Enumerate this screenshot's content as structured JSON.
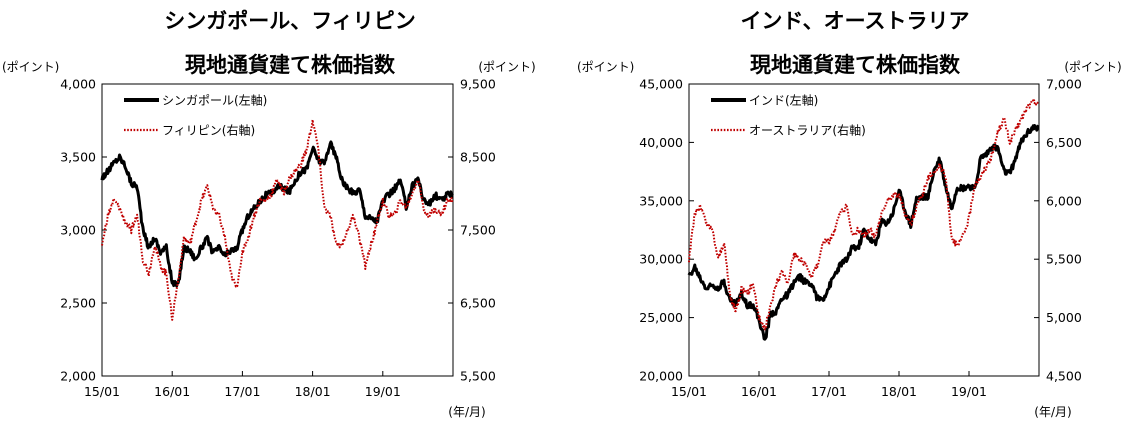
{
  "chart_data": [
    {
      "type": "line",
      "title_line1": "シンガポール、フィリピン",
      "title_line2": "現地通貨建て株価指数",
      "ylabel_left": "(ポイント)",
      "ylabel_right": "(ポイント)",
      "xlabel": "(年/月)",
      "x_ticks": [
        "15/01",
        "16/01",
        "17/01",
        "18/01",
        "19/01"
      ],
      "x_range": [
        "2015-01",
        "2019-12"
      ],
      "y_left_ticks": [
        "2,000",
        "2,500",
        "3,000",
        "3,500",
        "4,000"
      ],
      "y_left_range": [
        2000,
        4000
      ],
      "y_right_ticks": [
        "5,500",
        "6,500",
        "7,500",
        "8,500",
        "9,500"
      ],
      "y_right_range": [
        5500,
        9500
      ],
      "legend_position": "top-left",
      "grid": false,
      "series": [
        {
          "name": "シンガポール(左軸)",
          "axis": "left",
          "color": "#000000",
          "style": "solid",
          "x": [
            "2015-01",
            "2015-02",
            "2015-03",
            "2015-04",
            "2015-05",
            "2015-06",
            "2015-07",
            "2015-08",
            "2015-09",
            "2015-10",
            "2015-11",
            "2015-12",
            "2016-01",
            "2016-02",
            "2016-03",
            "2016-04",
            "2016-05",
            "2016-06",
            "2016-07",
            "2016-08",
            "2016-09",
            "2016-10",
            "2016-11",
            "2016-12",
            "2017-01",
            "2017-02",
            "2017-03",
            "2017-04",
            "2017-05",
            "2017-06",
            "2017-07",
            "2017-08",
            "2017-09",
            "2017-10",
            "2017-11",
            "2017-12",
            "2018-01",
            "2018-02",
            "2018-03",
            "2018-04",
            "2018-05",
            "2018-06",
            "2018-07",
            "2018-08",
            "2018-09",
            "2018-10",
            "2018-11",
            "2018-12",
            "2019-01",
            "2019-02",
            "2019-03",
            "2019-04",
            "2019-05",
            "2019-06",
            "2019-07",
            "2019-08",
            "2019-09",
            "2019-10",
            "2019-11",
            "2019-12"
          ],
          "values": [
            3360,
            3400,
            3460,
            3500,
            3440,
            3320,
            3300,
            3000,
            2880,
            2950,
            2850,
            2880,
            2640,
            2620,
            2880,
            2860,
            2800,
            2880,
            2940,
            2840,
            2880,
            2820,
            2860,
            2870,
            3000,
            3100,
            3150,
            3200,
            3240,
            3250,
            3300,
            3290,
            3260,
            3340,
            3400,
            3420,
            3560,
            3480,
            3450,
            3600,
            3500,
            3340,
            3280,
            3250,
            3280,
            3100,
            3080,
            3060,
            3200,
            3240,
            3280,
            3340,
            3160,
            3300,
            3360,
            3200,
            3180,
            3240,
            3200,
            3240
          ]
        },
        {
          "name": "フィリピン(右軸)",
          "axis": "right",
          "color": "#c00000",
          "style": "dotted",
          "x": [
            "2015-01",
            "2015-02",
            "2015-03",
            "2015-04",
            "2015-05",
            "2015-06",
            "2015-07",
            "2015-08",
            "2015-09",
            "2015-10",
            "2015-11",
            "2015-12",
            "2016-01",
            "2016-02",
            "2016-03",
            "2016-04",
            "2016-05",
            "2016-06",
            "2016-07",
            "2016-08",
            "2016-09",
            "2016-10",
            "2016-11",
            "2016-12",
            "2017-01",
            "2017-02",
            "2017-03",
            "2017-04",
            "2017-05",
            "2017-06",
            "2017-07",
            "2017-08",
            "2017-09",
            "2017-10",
            "2017-11",
            "2017-12",
            "2018-01",
            "2018-02",
            "2018-03",
            "2018-04",
            "2018-05",
            "2018-06",
            "2018-07",
            "2018-08",
            "2018-09",
            "2018-10",
            "2018-11",
            "2018-12",
            "2019-01",
            "2019-02",
            "2019-03",
            "2019-04",
            "2019-05",
            "2019-06",
            "2019-07",
            "2019-08",
            "2019-09",
            "2019-10",
            "2019-11",
            "2019-12"
          ],
          "values": [
            7300,
            7700,
            7900,
            7800,
            7600,
            7500,
            7700,
            7100,
            6900,
            7300,
            7000,
            6900,
            6300,
            6800,
            7400,
            7300,
            7600,
            7900,
            8100,
            7800,
            7700,
            7400,
            6900,
            6700,
            7200,
            7400,
            7700,
            7900,
            7900,
            8000,
            8200,
            8000,
            8200,
            8300,
            8400,
            8600,
            9000,
            8600,
            7800,
            7700,
            7300,
            7300,
            7500,
            7700,
            7400,
            7000,
            7300,
            7600,
            7900,
            7700,
            7700,
            7900,
            7800,
            8000,
            8200,
            7800,
            7700,
            7800,
            7700,
            7900
          ]
        }
      ]
    },
    {
      "type": "line",
      "title_line1": "インド、オーストラリア",
      "title_line2": "現地通貨建て株価指数",
      "ylabel_left": "(ポイント)",
      "ylabel_right": "(ポイント)",
      "xlabel": "(年/月)",
      "x_ticks": [
        "15/01",
        "16/01",
        "17/01",
        "18/01",
        "19/01"
      ],
      "x_range": [
        "2015-01",
        "2019-12"
      ],
      "y_left_ticks": [
        "20,000",
        "25,000",
        "30,000",
        "35,000",
        "40,000",
        "45,000"
      ],
      "y_left_range": [
        20000,
        45000
      ],
      "y_right_ticks": [
        "4,500",
        "5,000",
        "5,500",
        "6,000",
        "6,500",
        "7,000"
      ],
      "y_right_range": [
        4500,
        7000
      ],
      "legend_position": "top-left",
      "grid": false,
      "series": [
        {
          "name": "インド(左軸)",
          "axis": "left",
          "color": "#000000",
          "style": "solid",
          "x": [
            "2015-01",
            "2015-02",
            "2015-03",
            "2015-04",
            "2015-05",
            "2015-06",
            "2015-07",
            "2015-08",
            "2015-09",
            "2015-10",
            "2015-11",
            "2015-12",
            "2016-01",
            "2016-02",
            "2016-03",
            "2016-04",
            "2016-05",
            "2016-06",
            "2016-07",
            "2016-08",
            "2016-09",
            "2016-10",
            "2016-11",
            "2016-12",
            "2017-01",
            "2017-02",
            "2017-03",
            "2017-04",
            "2017-05",
            "2017-06",
            "2017-07",
            "2017-08",
            "2017-09",
            "2017-10",
            "2017-11",
            "2017-12",
            "2018-01",
            "2018-02",
            "2018-03",
            "2018-04",
            "2018-05",
            "2018-06",
            "2018-07",
            "2018-08",
            "2018-09",
            "2018-10",
            "2018-11",
            "2018-12",
            "2019-01",
            "2019-02",
            "2019-03",
            "2019-04",
            "2019-05",
            "2019-06",
            "2019-07",
            "2019-08",
            "2019-09",
            "2019-10",
            "2019-11",
            "2019-12"
          ],
          "values": [
            28500,
            29300,
            28300,
            27500,
            27800,
            27600,
            28100,
            26500,
            26200,
            27000,
            26100,
            26100,
            24800,
            23000,
            25300,
            25600,
            26700,
            27000,
            28000,
            28500,
            28000,
            28000,
            26600,
            26600,
            27600,
            28700,
            29600,
            29900,
            31100,
            30900,
            32500,
            31700,
            31300,
            33200,
            33100,
            34000,
            35900,
            34200,
            32900,
            35200,
            35300,
            35400,
            37600,
            38600,
            36200,
            34400,
            36200,
            36100,
            36300,
            35900,
            38700,
            39000,
            39700,
            39400,
            37500,
            37300,
            38700,
            40100,
            40800,
            41300
          ]
        },
        {
          "name": "オーストラリア(右軸)",
          "axis": "right",
          "color": "#c00000",
          "style": "dotted",
          "x": [
            "2015-01",
            "2015-02",
            "2015-03",
            "2015-04",
            "2015-05",
            "2015-06",
            "2015-07",
            "2015-08",
            "2015-09",
            "2015-10",
            "2015-11",
            "2015-12",
            "2016-01",
            "2016-02",
            "2016-03",
            "2016-04",
            "2016-05",
            "2016-06",
            "2016-07",
            "2016-08",
            "2016-09",
            "2016-10",
            "2016-11",
            "2016-12",
            "2017-01",
            "2017-02",
            "2017-03",
            "2017-04",
            "2017-05",
            "2017-06",
            "2017-07",
            "2017-08",
            "2017-09",
            "2017-10",
            "2017-11",
            "2017-12",
            "2018-01",
            "2018-02",
            "2018-03",
            "2018-04",
            "2018-05",
            "2018-06",
            "2018-07",
            "2018-08",
            "2018-09",
            "2018-10",
            "2018-11",
            "2018-12",
            "2019-01",
            "2019-02",
            "2019-03",
            "2019-04",
            "2019-05",
            "2019-06",
            "2019-07",
            "2019-08",
            "2019-09",
            "2019-10",
            "2019-11",
            "2019-12"
          ],
          "values": [
            5500,
            5900,
            5950,
            5800,
            5750,
            5500,
            5650,
            5200,
            5050,
            5250,
            5200,
            5300,
            5000,
            4900,
            5100,
            5300,
            5400,
            5300,
            5550,
            5500,
            5450,
            5350,
            5450,
            5650,
            5650,
            5750,
            5900,
            5950,
            5700,
            5750,
            5700,
            5750,
            5700,
            5900,
            6000,
            6050,
            6050,
            5900,
            5800,
            5950,
            6050,
            6200,
            6250,
            6300,
            6200,
            5700,
            5600,
            5700,
            5850,
            6150,
            6200,
            6300,
            6400,
            6600,
            6700,
            6500,
            6600,
            6700,
            6800,
            6850
          ]
        }
      ]
    }
  ]
}
